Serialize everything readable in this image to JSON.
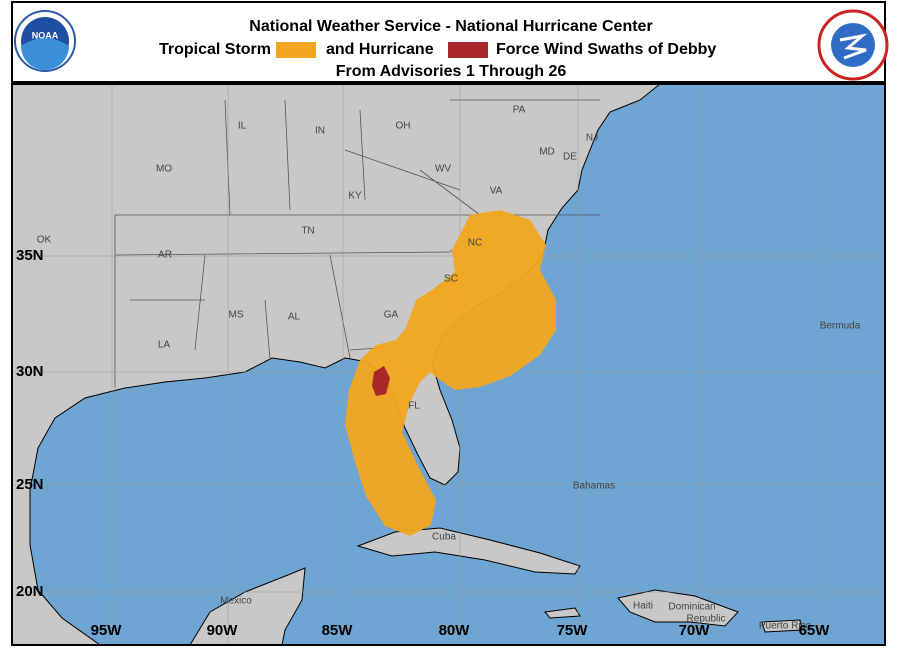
{
  "header": {
    "title": "National Weather Service - National Hurricane Center",
    "legend": [
      {
        "label": "Tropical Storm",
        "color": "#f2a61f"
      },
      {
        "label": "and Hurricane",
        "color": "#a8282a"
      }
    ],
    "legend_suffix": "Force Wind Swaths of Debby",
    "subtitle": "From Advisories 1 Through 26",
    "logo": "NOAA"
  },
  "map": {
    "labels": [
      "IL",
      "IN",
      "OH",
      "PA",
      "NJ",
      "MD",
      "DE",
      "WV",
      "VA",
      "KY",
      "MO",
      "TN",
      "NC",
      "OK",
      "AR",
      "SC",
      "MS",
      "AL",
      "GA",
      "LA",
      "FL",
      "Bermuda",
      "Bahamas",
      "Cuba",
      "Mexico",
      "Haiti",
      "Dominican",
      "Republic",
      "Puerto Rico"
    ],
    "lat_labels": [
      "35N",
      "30N",
      "25N",
      "20N"
    ],
    "lon_labels": [
      "95W",
      "90W",
      "85W",
      "80W",
      "75W",
      "70W",
      "65W"
    ]
  }
}
